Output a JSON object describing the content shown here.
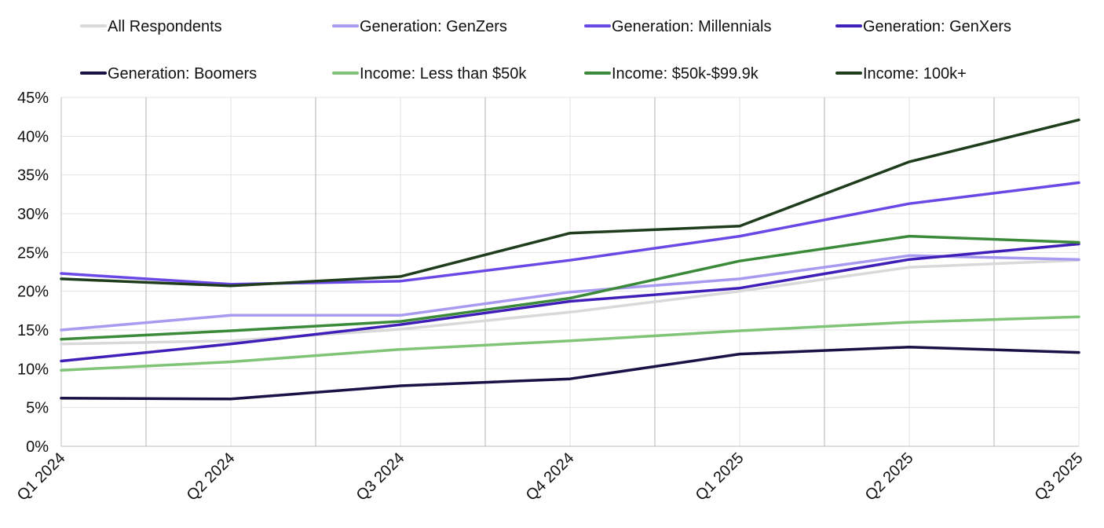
{
  "chart_data": {
    "type": "line",
    "title": "",
    "xlabel": "",
    "ylabel": "",
    "ylim": [
      0,
      45
    ],
    "y_ticks": [
      "0%",
      "5%",
      "10%",
      "15%",
      "20%",
      "25%",
      "30%",
      "35%",
      "40%",
      "45%"
    ],
    "categories": [
      "Q1 2024",
      "Q2 2024",
      "Q3 2024",
      "Q4 2024",
      "Q1 2025",
      "Q2 2025",
      "Q3 2025"
    ],
    "legend_position": "top",
    "series": [
      {
        "name": "All Respondents",
        "color": "#d9d9d9",
        "values": [
          13.2,
          13.6,
          15.1,
          17.3,
          20.0,
          23.1,
          24.0
        ]
      },
      {
        "name": "Generation: GenZers",
        "color": "#a89af0",
        "values": [
          15.0,
          16.9,
          16.9,
          19.9,
          21.6,
          24.6,
          24.1
        ]
      },
      {
        "name": "Generation: Millennials",
        "color": "#6a48e6",
        "values": [
          22.3,
          20.9,
          21.3,
          24.0,
          27.1,
          31.3,
          34.0
        ]
      },
      {
        "name": "Generation: GenXers",
        "color": "#3f1fb8",
        "values": [
          11.0,
          13.2,
          15.7,
          18.7,
          20.4,
          24.1,
          26.1
        ]
      },
      {
        "name": "Generation: Boomers",
        "color": "#1c1147",
        "values": [
          6.2,
          6.1,
          7.8,
          8.7,
          11.9,
          12.8,
          12.1
        ]
      },
      {
        "name": "Income: Less than $50k",
        "color": "#80c477",
        "values": [
          9.8,
          10.9,
          12.5,
          13.6,
          14.9,
          16.0,
          16.7
        ]
      },
      {
        "name": "Income: $50k-$99.9k",
        "color": "#3a8a3a",
        "values": [
          13.8,
          14.9,
          16.1,
          19.1,
          23.9,
          27.1,
          26.3
        ]
      },
      {
        "name": "Income: 100k+",
        "color": "#1f3d1c",
        "values": [
          21.6,
          20.7,
          21.9,
          27.5,
          28.4,
          36.7,
          42.1
        ]
      }
    ]
  }
}
